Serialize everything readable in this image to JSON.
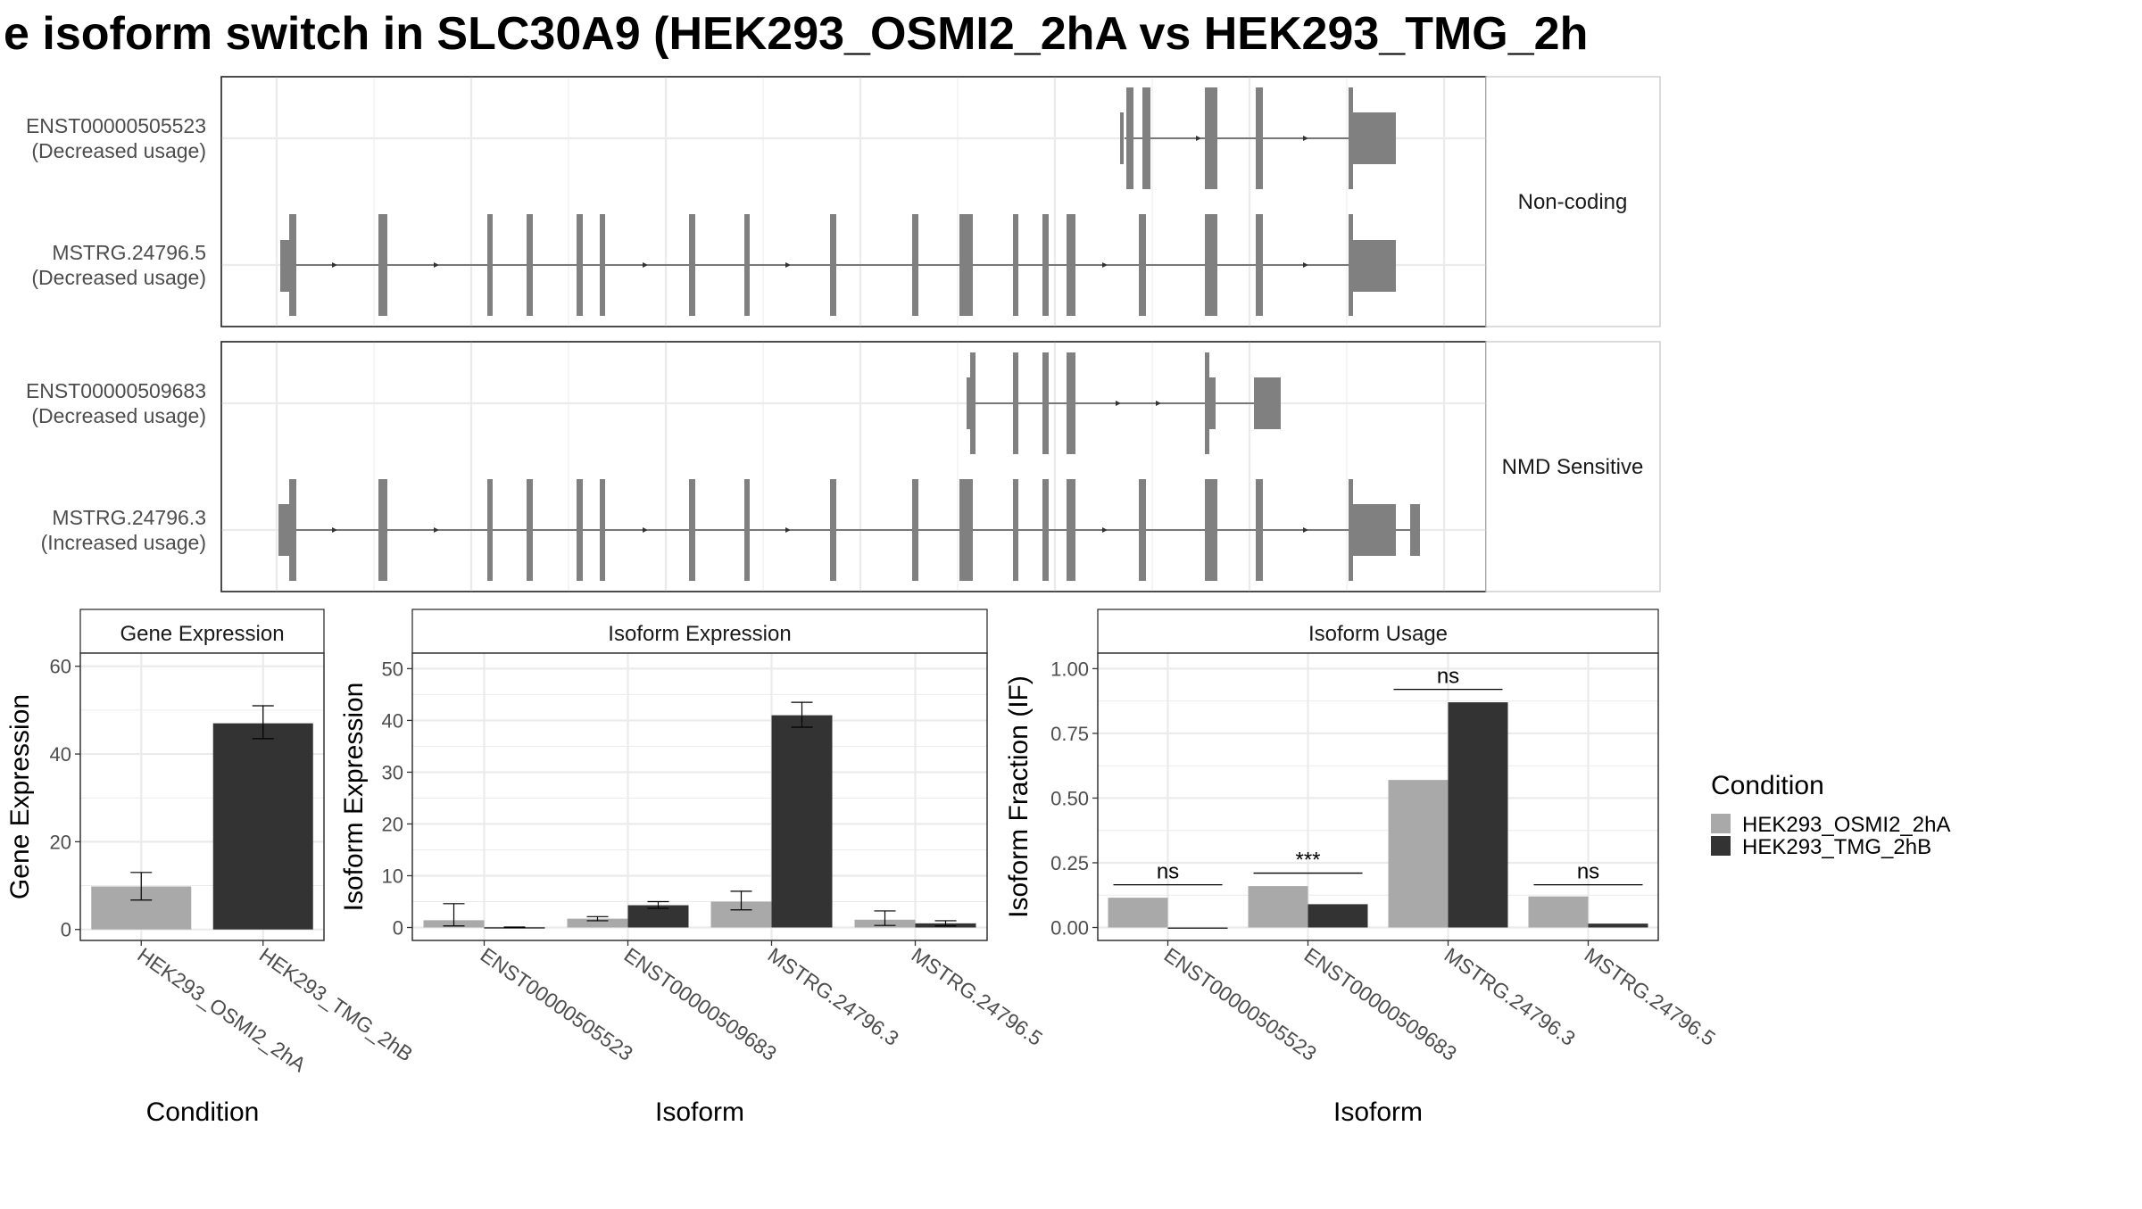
{
  "title": "e isoform switch in SLC30A9 (HEK293_OSMI2_2hA vs HEK293_TMG_2h",
  "colors": {
    "cond_a": "#a9a9a9",
    "cond_b": "#333333",
    "exon": "#808080",
    "grid": "#ebebeb",
    "frame": "#333333"
  },
  "gene_structure": {
    "groups": [
      {
        "label": "Non-coding",
        "isoforms": [
          {
            "id": "ENST00000505523",
            "usage": "(Decreased usage)"
          },
          {
            "id": "MSTRG.24796.5",
            "usage": "(Decreased usage)"
          }
        ]
      },
      {
        "label": "NMD Sensitive",
        "isoforms": [
          {
            "id": "ENST00000509683",
            "usage": "(Decreased usage)"
          },
          {
            "id": "MSTRG.24796.3",
            "usage": "(Increased usage)"
          }
        ]
      }
    ]
  },
  "legend": {
    "title": "Condition",
    "items": [
      {
        "label": "HEK293_OSMI2_2hA",
        "color": "#a9a9a9"
      },
      {
        "label": "HEK293_TMG_2hB",
        "color": "#333333"
      }
    ]
  },
  "chart_data": [
    {
      "type": "bar",
      "title": "Gene Expression",
      "xlabel": "Condition",
      "ylabel": "Gene Expression",
      "ylim": [
        -2.5,
        63
      ],
      "yticks": [
        0,
        20,
        40,
        60
      ],
      "yticklabels": [
        "0",
        "20",
        "40",
        "60"
      ],
      "categories": [
        "HEK293_OSMI2_2hA",
        "HEK293_TMG_2hB"
      ],
      "series": [
        {
          "name": "HEK293_OSMI2_2hA",
          "values": [
            9.8,
            null
          ],
          "err_low": [
            6.7,
            null
          ],
          "err_high": [
            13,
            null
          ]
        },
        {
          "name": "HEK293_TMG_2hB",
          "values": [
            null,
            47
          ],
          "err_low": [
            null,
            43.5
          ],
          "err_high": [
            null,
            51
          ]
        }
      ],
      "grid": true
    },
    {
      "type": "bar",
      "title": "Isoform Expression",
      "xlabel": "Isoform",
      "ylabel": "Isoform Expression",
      "ylim": [
        -2.5,
        53
      ],
      "yticks": [
        0,
        10,
        20,
        30,
        40,
        50
      ],
      "yticklabels": [
        "0",
        "10",
        "20",
        "30",
        "40",
        "50"
      ],
      "categories": [
        "ENST00000505523",
        "ENST00000509683",
        "MSTRG.24796.3",
        "MSTRG.24796.5"
      ],
      "series": [
        {
          "name": "HEK293_OSMI2_2hA",
          "values": [
            1.4,
            1.7,
            5.0,
            1.5
          ],
          "err_low": [
            0.3,
            1.3,
            3.4,
            0.4
          ],
          "err_high": [
            4.6,
            2.1,
            7.0,
            3.2
          ]
        },
        {
          "name": "HEK293_TMG_2hB",
          "values": [
            0.05,
            4.3,
            41,
            0.8
          ],
          "err_low": [
            0.0,
            3.7,
            38.7,
            0.3
          ],
          "err_high": [
            0.1,
            5.0,
            43.5,
            1.3
          ]
        }
      ],
      "grid": true
    },
    {
      "type": "bar",
      "title": "Isoform Usage",
      "xlabel": "Isoform",
      "ylabel": "Isoform Fraction (IF)",
      "ylim": [
        -0.05,
        1.06
      ],
      "yticks": [
        0,
        0.25,
        0.5,
        0.75,
        1.0
      ],
      "yticklabels": [
        "0.00",
        "0.25",
        "0.50",
        "0.75",
        "1.00"
      ],
      "categories": [
        "ENST00000505523",
        "ENST00000509683",
        "MSTRG.24796.3",
        "MSTRG.24796.5"
      ],
      "series": [
        {
          "name": "HEK293_OSMI2_2hA",
          "values": [
            0.115,
            0.16,
            0.57,
            0.12
          ]
        },
        {
          "name": "HEK293_TMG_2hB",
          "values": [
            0.0,
            0.09,
            0.87,
            0.015
          ]
        }
      ],
      "significance": [
        "ns",
        "***",
        "ns",
        "ns"
      ],
      "sig_y": [
        0.165,
        0.21,
        0.92,
        0.165
      ],
      "grid": true
    }
  ]
}
